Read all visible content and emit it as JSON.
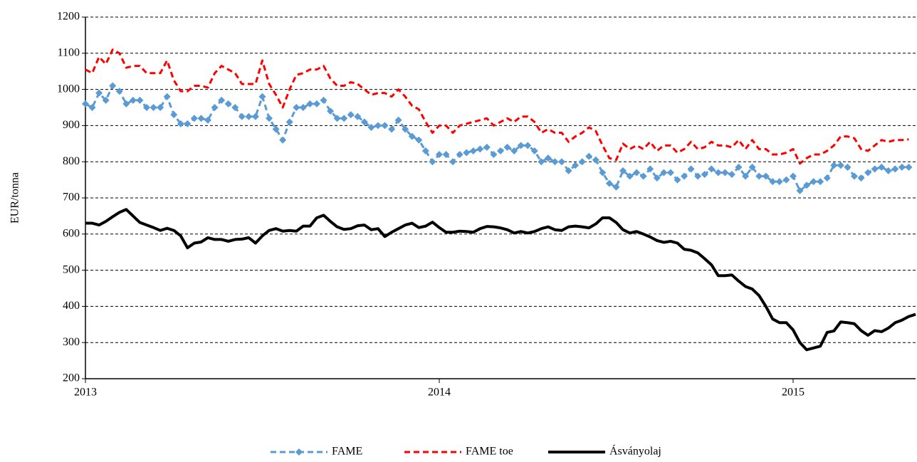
{
  "chart_data": {
    "type": "line",
    "y_label": "EUR/tonna",
    "categories": [
      "2013",
      null,
      null,
      null,
      null,
      null,
      null,
      null,
      null,
      null,
      null,
      null,
      null,
      null,
      null,
      null,
      null,
      null,
      null,
      null,
      null,
      null,
      null,
      null,
      null,
      null,
      null,
      null,
      null,
      null,
      null,
      null,
      null,
      null,
      null,
      null,
      null,
      null,
      null,
      null,
      null,
      null,
      null,
      null,
      null,
      null,
      null,
      null,
      null,
      null,
      null,
      null,
      "2014",
      null,
      null,
      null,
      null,
      null,
      null,
      null,
      null,
      null,
      null,
      null,
      null,
      null,
      null,
      null,
      null,
      null,
      null,
      null,
      null,
      null,
      null,
      null,
      null,
      null,
      null,
      null,
      null,
      null,
      null,
      null,
      null,
      null,
      null,
      null,
      null,
      null,
      null,
      null,
      null,
      null,
      null,
      null,
      null,
      null,
      null,
      null,
      null,
      null,
      null,
      null,
      "2015",
      null,
      null,
      null,
      null,
      null,
      null,
      null,
      null,
      null,
      null,
      null,
      null,
      null,
      null,
      null,
      null,
      null,
      null
    ],
    "series": [
      {
        "name": "FAME",
        "color": "#5b9bd5",
        "dash": true,
        "marker": "diamond",
        "width": 3,
        "values": [
          960,
          950,
          990,
          970,
          1010,
          995,
          960,
          970,
          970,
          950,
          950,
          950,
          980,
          930,
          905,
          905,
          920,
          920,
          915,
          950,
          970,
          960,
          950,
          925,
          925,
          925,
          980,
          920,
          890,
          860,
          910,
          950,
          950,
          960,
          960,
          970,
          940,
          920,
          920,
          930,
          925,
          910,
          895,
          900,
          900,
          890,
          915,
          890,
          870,
          860,
          830,
          800,
          820,
          820,
          800,
          820,
          825,
          830,
          835,
          840,
          820,
          830,
          840,
          830,
          845,
          845,
          830,
          800,
          810,
          800,
          800,
          775,
          790,
          800,
          815,
          805,
          770,
          740,
          730,
          775,
          760,
          770,
          760,
          780,
          755,
          770,
          770,
          750,
          760,
          780,
          760,
          765,
          780,
          770,
          770,
          765,
          785,
          760,
          785,
          760,
          760,
          745,
          745,
          750,
          760,
          720,
          735,
          745,
          745,
          755,
          790,
          790,
          785,
          760,
          755,
          770,
          780,
          785,
          775,
          780,
          785,
          785,
          null
        ]
      },
      {
        "name": "FAME toe",
        "color": "#ff0000",
        "dash": true,
        "marker": null,
        "width": 3,
        "values": [
          1055,
          1045,
          1090,
          1070,
          1110,
          1100,
          1060,
          1065,
          1065,
          1045,
          1045,
          1045,
          1080,
          1025,
          995,
          995,
          1010,
          1010,
          1005,
          1045,
          1065,
          1055,
          1045,
          1015,
          1015,
          1015,
          1080,
          1015,
          985,
          950,
          1000,
          1040,
          1045,
          1055,
          1055,
          1065,
          1030,
          1010,
          1010,
          1020,
          1015,
          1000,
          985,
          990,
          990,
          980,
          1000,
          980,
          955,
          945,
          910,
          880,
          900,
          900,
          880,
          900,
          905,
          910,
          915,
          920,
          900,
          910,
          920,
          910,
          925,
          925,
          910,
          880,
          890,
          880,
          880,
          855,
          870,
          880,
          895,
          885,
          845,
          810,
          805,
          850,
          835,
          845,
          835,
          855,
          830,
          845,
          845,
          825,
          835,
          855,
          835,
          840,
          855,
          845,
          845,
          840,
          860,
          835,
          860,
          835,
          835,
          820,
          820,
          825,
          835,
          795,
          810,
          820,
          820,
          830,
          845,
          870,
          870,
          865,
          835,
          830,
          845,
          860,
          855,
          860,
          860,
          862,
          null
        ]
      },
      {
        "name": "Ásványolaj",
        "color": "#000000",
        "dash": false,
        "marker": null,
        "width": 4,
        "values": [
          630,
          630,
          625,
          635,
          648,
          660,
          668,
          650,
          632,
          625,
          618,
          610,
          616,
          610,
          595,
          562,
          575,
          578,
          590,
          585,
          585,
          580,
          585,
          586,
          590,
          575,
          595,
          610,
          615,
          608,
          610,
          608,
          622,
          622,
          645,
          652,
          635,
          620,
          613,
          615,
          623,
          625,
          612,
          615,
          593,
          605,
          615,
          625,
          630,
          618,
          622,
          633,
          618,
          605,
          605,
          608,
          607,
          605,
          615,
          621,
          620,
          617,
          612,
          603,
          607,
          603,
          607,
          615,
          620,
          612,
          610,
          620,
          622,
          620,
          617,
          628,
          645,
          645,
          632,
          612,
          603,
          607,
          600,
          592,
          582,
          577,
          580,
          575,
          558,
          555,
          548,
          532,
          515,
          485,
          485,
          487,
          470,
          455,
          448,
          430,
          400,
          365,
          355,
          355,
          335,
          300,
          280,
          285,
          290,
          328,
          332,
          357,
          355,
          352,
          333,
          320,
          333,
          330,
          340,
          355,
          362,
          372,
          378
        ]
      }
    ],
    "ylim": [
      200,
      1200
    ],
    "yticks": [
      200,
      300,
      400,
      500,
      600,
      700,
      800,
      900,
      1000,
      1100,
      1200
    ],
    "grid": true,
    "legend": "bottom"
  }
}
